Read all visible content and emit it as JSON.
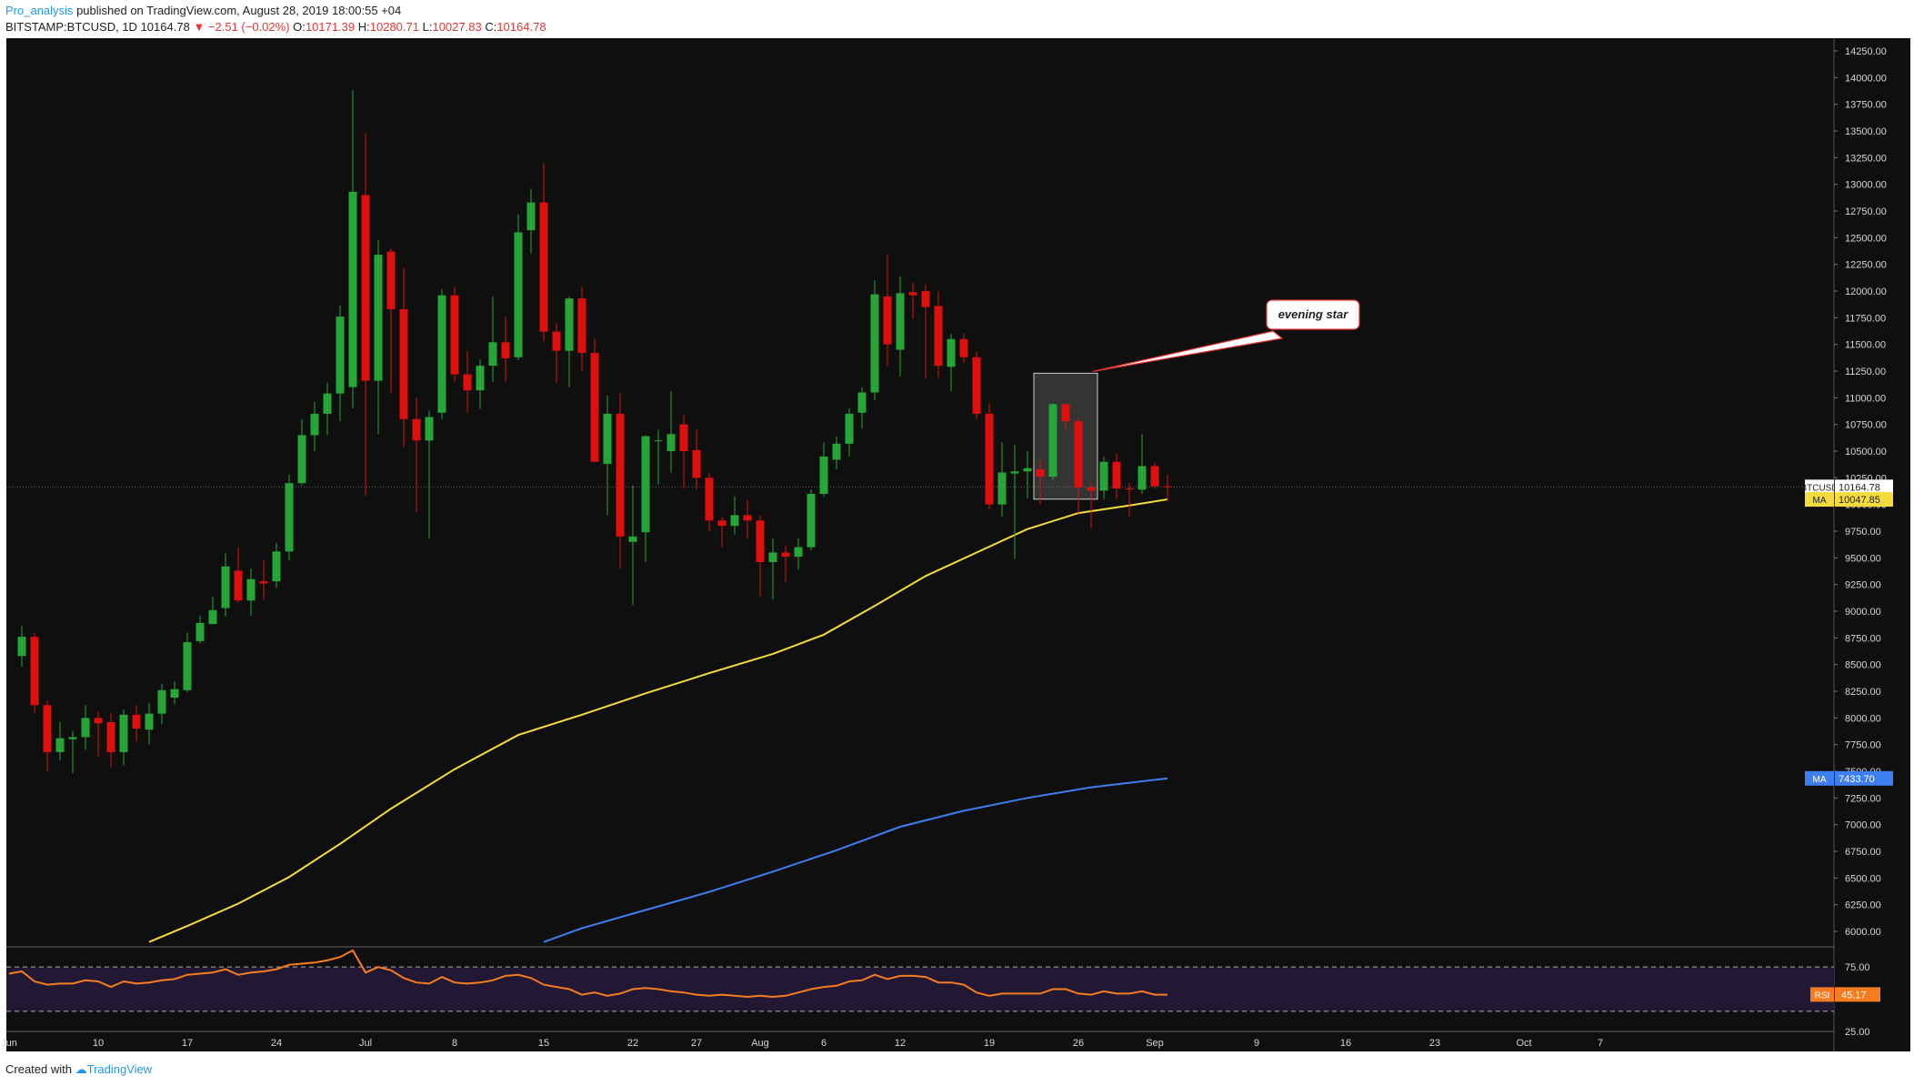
{
  "header": {
    "author": "Pro_analysis",
    "published": "published on TradingView.com, August 28, 2019 18:00:55 +04",
    "symbol": "BITSTAMP:BTCUSD, 1D",
    "last": "10164.78",
    "change": "▼ −2.51 (−0.02%)",
    "open_label": "O:",
    "open": "10171.39",
    "high_label": "H:",
    "high": "10280.71",
    "low_label": "L:",
    "low": "10027.83",
    "close_label": "C:",
    "close": "10164.78"
  },
  "footer": {
    "created": "Created with",
    "brand": "TradingView"
  },
  "colors": {
    "background": "#0f0f0f",
    "up": "#26a637",
    "down": "#e00f0f",
    "ma_fast": "#f5dc3b",
    "ma_slow": "#3d7ff0",
    "rsi": "#f57c1f",
    "rsi_band": "#221833"
  },
  "chart_data": {
    "type": "candlestick",
    "timeframe": "1D",
    "ylim": [
      5900,
      14400
    ],
    "y_ticks": [
      "14250.00",
      "14000.00",
      "13750.00",
      "13500.00",
      "13250.00",
      "13000.00",
      "12750.00",
      "12500.00",
      "12250.00",
      "12000.00",
      "11750.00",
      "11500.00",
      "11250.00",
      "11000.00",
      "10750.00",
      "10500.00",
      "10250.00",
      "10000.00",
      "9750.00",
      "9500.00",
      "9250.00",
      "9000.00",
      "8750.00",
      "8500.00",
      "8250.00",
      "8000.00",
      "7750.00",
      "7500.00",
      "7250.00",
      "7000.00",
      "6750.00",
      "6500.00",
      "6250.00",
      "6000.00"
    ],
    "x_ticks": [
      {
        "day": 0,
        "label": "Jun"
      },
      {
        "day": 7,
        "label": "10"
      },
      {
        "day": 14,
        "label": "17"
      },
      {
        "day": 21,
        "label": "24"
      },
      {
        "day": 28,
        "label": "Jul"
      },
      {
        "day": 35,
        "label": "8"
      },
      {
        "day": 42,
        "label": "15"
      },
      {
        "day": 49,
        "label": "22"
      },
      {
        "day": 54,
        "label": "27"
      },
      {
        "day": 59,
        "label": "Aug"
      },
      {
        "day": 64,
        "label": "6"
      },
      {
        "day": 70,
        "label": "12"
      },
      {
        "day": 77,
        "label": "19"
      },
      {
        "day": 84,
        "label": "26"
      },
      {
        "day": 90,
        "label": "Sep"
      },
      {
        "day": 98,
        "label": "9"
      },
      {
        "day": 105,
        "label": "16"
      },
      {
        "day": 112,
        "label": "23"
      },
      {
        "day": 119,
        "label": "Oct"
      },
      {
        "day": 125,
        "label": "7"
      }
    ],
    "candles": [
      {
        "d": 1,
        "o": 8580,
        "h": 8860,
        "l": 8480,
        "c": 8760
      },
      {
        "d": 2,
        "o": 8760,
        "h": 8800,
        "l": 8050,
        "c": 8120
      },
      {
        "d": 3,
        "o": 8120,
        "h": 8160,
        "l": 7500,
        "c": 7680
      },
      {
        "d": 4,
        "o": 7680,
        "h": 7960,
        "l": 7600,
        "c": 7810
      },
      {
        "d": 5,
        "o": 7800,
        "h": 7880,
        "l": 7480,
        "c": 7820
      },
      {
        "d": 6,
        "o": 7820,
        "h": 8120,
        "l": 7700,
        "c": 8000
      },
      {
        "d": 7,
        "o": 8000,
        "h": 8060,
        "l": 7640,
        "c": 7950
      },
      {
        "d": 8,
        "o": 7960,
        "h": 8040,
        "l": 7540,
        "c": 7680
      },
      {
        "d": 9,
        "o": 7680,
        "h": 8080,
        "l": 7560,
        "c": 8030
      },
      {
        "d": 10,
        "o": 8030,
        "h": 8120,
        "l": 7780,
        "c": 7900
      },
      {
        "d": 11,
        "o": 7890,
        "h": 8140,
        "l": 7750,
        "c": 8040
      },
      {
        "d": 12,
        "o": 8040,
        "h": 8320,
        "l": 7940,
        "c": 8260
      },
      {
        "d": 13,
        "o": 8190,
        "h": 8340,
        "l": 8130,
        "c": 8270
      },
      {
        "d": 14,
        "o": 8260,
        "h": 8800,
        "l": 8240,
        "c": 8710
      },
      {
        "d": 15,
        "o": 8720,
        "h": 8960,
        "l": 8700,
        "c": 8890
      },
      {
        "d": 16,
        "o": 8880,
        "h": 9140,
        "l": 8880,
        "c": 9010
      },
      {
        "d": 17,
        "o": 9030,
        "h": 9540,
        "l": 8950,
        "c": 9420
      },
      {
        "d": 18,
        "o": 9380,
        "h": 9600,
        "l": 9080,
        "c": 9100
      },
      {
        "d": 19,
        "o": 9100,
        "h": 9400,
        "l": 8960,
        "c": 9300
      },
      {
        "d": 20,
        "o": 9280,
        "h": 9480,
        "l": 9100,
        "c": 9260
      },
      {
        "d": 21,
        "o": 9280,
        "h": 9640,
        "l": 9220,
        "c": 9560
      },
      {
        "d": 22,
        "o": 9560,
        "h": 10280,
        "l": 9480,
        "c": 10200
      },
      {
        "d": 23,
        "o": 10200,
        "h": 10800,
        "l": 10180,
        "c": 10650
      },
      {
        "d": 24,
        "o": 10650,
        "h": 10960,
        "l": 10500,
        "c": 10850
      },
      {
        "d": 25,
        "o": 10850,
        "h": 11140,
        "l": 10650,
        "c": 11040
      },
      {
        "d": 26,
        "o": 11040,
        "h": 11860,
        "l": 10780,
        "c": 11760
      },
      {
        "d": 27,
        "o": 11100,
        "h": 13880,
        "l": 10900,
        "c": 12930
      },
      {
        "d": 28,
        "o": 12900,
        "h": 13480,
        "l": 10080,
        "c": 11160
      },
      {
        "d": 29,
        "o": 11160,
        "h": 12480,
        "l": 10660,
        "c": 12340
      },
      {
        "d": 30,
        "o": 12370,
        "h": 12400,
        "l": 11050,
        "c": 11830
      },
      {
        "d": 31,
        "o": 11830,
        "h": 12220,
        "l": 10540,
        "c": 10800
      },
      {
        "d": 32,
        "o": 10800,
        "h": 11000,
        "l": 9930,
        "c": 10600
      },
      {
        "d": 33,
        "o": 10600,
        "h": 10880,
        "l": 9680,
        "c": 10820
      },
      {
        "d": 34,
        "o": 10860,
        "h": 12020,
        "l": 10800,
        "c": 11960
      },
      {
        "d": 35,
        "o": 11960,
        "h": 12040,
        "l": 11150,
        "c": 11220
      },
      {
        "d": 36,
        "o": 11220,
        "h": 11440,
        "l": 10860,
        "c": 11070
      },
      {
        "d": 37,
        "o": 11070,
        "h": 11360,
        "l": 10900,
        "c": 11300
      },
      {
        "d": 38,
        "o": 11300,
        "h": 11950,
        "l": 11150,
        "c": 11520
      },
      {
        "d": 39,
        "o": 11520,
        "h": 11760,
        "l": 11150,
        "c": 11370
      },
      {
        "d": 40,
        "o": 11380,
        "h": 12720,
        "l": 11350,
        "c": 12550
      },
      {
        "d": 41,
        "o": 12570,
        "h": 12960,
        "l": 12350,
        "c": 12830
      },
      {
        "d": 42,
        "o": 12830,
        "h": 13200,
        "l": 11530,
        "c": 11620
      },
      {
        "d": 43,
        "o": 11620,
        "h": 11700,
        "l": 11140,
        "c": 11440
      },
      {
        "d": 44,
        "o": 11440,
        "h": 11950,
        "l": 11100,
        "c": 11930
      },
      {
        "d": 45,
        "o": 11930,
        "h": 12040,
        "l": 11250,
        "c": 11420
      },
      {
        "d": 46,
        "o": 11420,
        "h": 11550,
        "l": 10400,
        "c": 10400
      },
      {
        "d": 47,
        "o": 10380,
        "h": 11020,
        "l": 9900,
        "c": 10850
      },
      {
        "d": 48,
        "o": 10850,
        "h": 11040,
        "l": 9400,
        "c": 9700
      },
      {
        "d": 49,
        "o": 9650,
        "h": 10180,
        "l": 9060,
        "c": 9700
      },
      {
        "d": 50,
        "o": 9740,
        "h": 10650,
        "l": 9460,
        "c": 10640
      },
      {
        "d": 51,
        "o": 10600,
        "h": 10700,
        "l": 10190,
        "c": 10600
      },
      {
        "d": 52,
        "o": 10500,
        "h": 11060,
        "l": 10300,
        "c": 10660
      },
      {
        "d": 53,
        "o": 10750,
        "h": 10840,
        "l": 10150,
        "c": 10500
      },
      {
        "d": 54,
        "o": 10510,
        "h": 10700,
        "l": 10140,
        "c": 10250
      },
      {
        "d": 55,
        "o": 10250,
        "h": 10300,
        "l": 9750,
        "c": 9850
      },
      {
        "d": 56,
        "o": 9850,
        "h": 9880,
        "l": 9600,
        "c": 9800
      },
      {
        "d": 57,
        "o": 9800,
        "h": 10080,
        "l": 9720,
        "c": 9900
      },
      {
        "d": 58,
        "o": 9900,
        "h": 10040,
        "l": 9680,
        "c": 9850
      },
      {
        "d": 59,
        "o": 9850,
        "h": 9900,
        "l": 9140,
        "c": 9460
      },
      {
        "d": 60,
        "o": 9460,
        "h": 9680,
        "l": 9110,
        "c": 9550
      },
      {
        "d": 61,
        "o": 9550,
        "h": 9620,
        "l": 9270,
        "c": 9510
      },
      {
        "d": 62,
        "o": 9510,
        "h": 9680,
        "l": 9390,
        "c": 9600
      },
      {
        "d": 63,
        "o": 9600,
        "h": 10140,
        "l": 9570,
        "c": 10100
      },
      {
        "d": 64,
        "o": 10100,
        "h": 10580,
        "l": 10070,
        "c": 10450
      },
      {
        "d": 65,
        "o": 10420,
        "h": 10640,
        "l": 10330,
        "c": 10570
      },
      {
        "d": 66,
        "o": 10570,
        "h": 10900,
        "l": 10450,
        "c": 10850
      },
      {
        "d": 67,
        "o": 10860,
        "h": 11100,
        "l": 10710,
        "c": 11050
      },
      {
        "d": 68,
        "o": 11050,
        "h": 12100,
        "l": 10980,
        "c": 11970
      },
      {
        "d": 69,
        "o": 11950,
        "h": 12340,
        "l": 11300,
        "c": 11500
      },
      {
        "d": 70,
        "o": 11450,
        "h": 12140,
        "l": 11200,
        "c": 11980
      },
      {
        "d": 71,
        "o": 11990,
        "h": 12080,
        "l": 11740,
        "c": 11960
      },
      {
        "d": 72,
        "o": 12000,
        "h": 12060,
        "l": 11180,
        "c": 11850
      },
      {
        "d": 73,
        "o": 11860,
        "h": 11990,
        "l": 11190,
        "c": 11300
      },
      {
        "d": 74,
        "o": 11290,
        "h": 11600,
        "l": 11060,
        "c": 11550
      },
      {
        "d": 75,
        "o": 11550,
        "h": 11600,
        "l": 11330,
        "c": 11380
      },
      {
        "d": 76,
        "o": 11380,
        "h": 11430,
        "l": 10800,
        "c": 10850
      },
      {
        "d": 77,
        "o": 10850,
        "h": 10950,
        "l": 9950,
        "c": 10000
      },
      {
        "d": 78,
        "o": 10000,
        "h": 10580,
        "l": 9890,
        "c": 10300
      },
      {
        "d": 79,
        "o": 10290,
        "h": 10560,
        "l": 9490,
        "c": 10310
      },
      {
        "d": 80,
        "o": 10310,
        "h": 10500,
        "l": 10060,
        "c": 10340
      },
      {
        "d": 81,
        "o": 10330,
        "h": 10420,
        "l": 10000,
        "c": 10260
      },
      {
        "d": 82,
        "o": 10260,
        "h": 10950,
        "l": 10230,
        "c": 10940
      },
      {
        "d": 83,
        "o": 10940,
        "h": 10950,
        "l": 10700,
        "c": 10780
      },
      {
        "d": 84,
        "o": 10780,
        "h": 10820,
        "l": 9900,
        "c": 10160
      },
      {
        "d": 85,
        "o": 10160,
        "h": 10200,
        "l": 9780,
        "c": 10130
      },
      {
        "d": 86,
        "o": 10130,
        "h": 10450,
        "l": 10050,
        "c": 10400
      },
      {
        "d": 87,
        "o": 10400,
        "h": 10480,
        "l": 10050,
        "c": 10150
      },
      {
        "d": 88,
        "o": 10150,
        "h": 10200,
        "l": 9890,
        "c": 10140
      },
      {
        "d": 89,
        "o": 10140,
        "h": 10660,
        "l": 10100,
        "c": 10360
      },
      {
        "d": 90,
        "o": 10360,
        "h": 10400,
        "l": 10150,
        "c": 10170
      },
      {
        "d": 91,
        "o": 10171.39,
        "h": 10280.71,
        "l": 10027.83,
        "c": 10164.78
      }
    ],
    "ma_fast": {
      "label": "MA",
      "last_value": "10047.85",
      "points": [
        [
          11,
          5900
        ],
        [
          14,
          6050
        ],
        [
          18,
          6260
        ],
        [
          22,
          6510
        ],
        [
          26,
          6820
        ],
        [
          30,
          7150
        ],
        [
          35,
          7520
        ],
        [
          40,
          7840
        ],
        [
          45,
          8030
        ],
        [
          50,
          8230
        ],
        [
          55,
          8420
        ],
        [
          60,
          8600
        ],
        [
          64,
          8780
        ],
        [
          68,
          9050
        ],
        [
          72,
          9330
        ],
        [
          76,
          9550
        ],
        [
          80,
          9770
        ],
        [
          84,
          9920
        ],
        [
          88,
          9990
        ],
        [
          91,
          10048
        ]
      ]
    },
    "ma_slow": {
      "label": "MA",
      "last_value": "7433.70",
      "points": [
        [
          42,
          5900
        ],
        [
          45,
          6030
        ],
        [
          50,
          6200
        ],
        [
          55,
          6370
        ],
        [
          60,
          6560
        ],
        [
          65,
          6760
        ],
        [
          70,
          6980
        ],
        [
          75,
          7130
        ],
        [
          80,
          7250
        ],
        [
          85,
          7350
        ],
        [
          91,
          7434
        ]
      ]
    },
    "last_price_label": "BTCUSD",
    "last_price": "10164.78",
    "annotation": "evening star",
    "highlight": {
      "d_from": 81,
      "d_to": 85,
      "y_from": 10050,
      "y_to": 11230
    },
    "rsi": {
      "label": "RSI",
      "value": "45.17",
      "ylim": [
        20,
        80
      ],
      "levels": [
        70,
        30
      ],
      "level_label": "75.00",
      "low_label": "25.00",
      "points": [
        [
          0,
          64
        ],
        [
          1,
          66
        ],
        [
          2,
          57
        ],
        [
          3,
          54
        ],
        [
          4,
          55
        ],
        [
          5,
          55
        ],
        [
          6,
          58
        ],
        [
          7,
          57
        ],
        [
          8,
          52
        ],
        [
          9,
          57
        ],
        [
          10,
          55
        ],
        [
          11,
          56
        ],
        [
          12,
          58
        ],
        [
          13,
          59
        ],
        [
          14,
          63
        ],
        [
          15,
          64
        ],
        [
          16,
          65
        ],
        [
          17,
          68
        ],
        [
          18,
          63
        ],
        [
          19,
          65
        ],
        [
          20,
          66
        ],
        [
          21,
          68
        ],
        [
          22,
          72
        ],
        [
          23,
          73
        ],
        [
          24,
          74
        ],
        [
          25,
          76
        ],
        [
          26,
          79
        ],
        [
          27,
          85
        ],
        [
          28,
          65
        ],
        [
          29,
          70
        ],
        [
          30,
          67
        ],
        [
          31,
          60
        ],
        [
          32,
          56
        ],
        [
          33,
          55
        ],
        [
          34,
          61
        ],
        [
          35,
          56
        ],
        [
          36,
          55
        ],
        [
          37,
          56
        ],
        [
          38,
          58
        ],
        [
          39,
          62
        ],
        [
          40,
          63
        ],
        [
          41,
          60
        ],
        [
          42,
          54
        ],
        [
          43,
          52
        ],
        [
          44,
          50
        ],
        [
          45,
          45
        ],
        [
          46,
          47
        ],
        [
          47,
          44
        ],
        [
          48,
          46
        ],
        [
          49,
          50
        ],
        [
          50,
          51
        ],
        [
          51,
          50
        ],
        [
          52,
          48
        ],
        [
          53,
          47
        ],
        [
          54,
          45
        ],
        [
          55,
          44
        ],
        [
          56,
          45
        ],
        [
          57,
          44
        ],
        [
          58,
          43
        ],
        [
          59,
          44
        ],
        [
          60,
          43
        ],
        [
          61,
          44
        ],
        [
          62,
          47
        ],
        [
          63,
          50
        ],
        [
          64,
          52
        ],
        [
          65,
          53
        ],
        [
          66,
          57
        ],
        [
          67,
          58
        ],
        [
          68,
          63
        ],
        [
          69,
          59
        ],
        [
          70,
          62
        ],
        [
          71,
          62
        ],
        [
          72,
          61
        ],
        [
          73,
          56
        ],
        [
          74,
          56
        ],
        [
          75,
          54
        ],
        [
          76,
          47
        ],
        [
          77,
          44
        ],
        [
          78,
          46
        ],
        [
          79,
          46
        ],
        [
          80,
          46
        ],
        [
          81,
          46
        ],
        [
          82,
          50
        ],
        [
          83,
          50
        ],
        [
          84,
          46
        ],
        [
          85,
          45
        ],
        [
          86,
          48
        ],
        [
          87,
          46
        ],
        [
          88,
          46
        ],
        [
          89,
          48
        ],
        [
          90,
          45
        ],
        [
          91,
          45
        ]
      ]
    }
  }
}
